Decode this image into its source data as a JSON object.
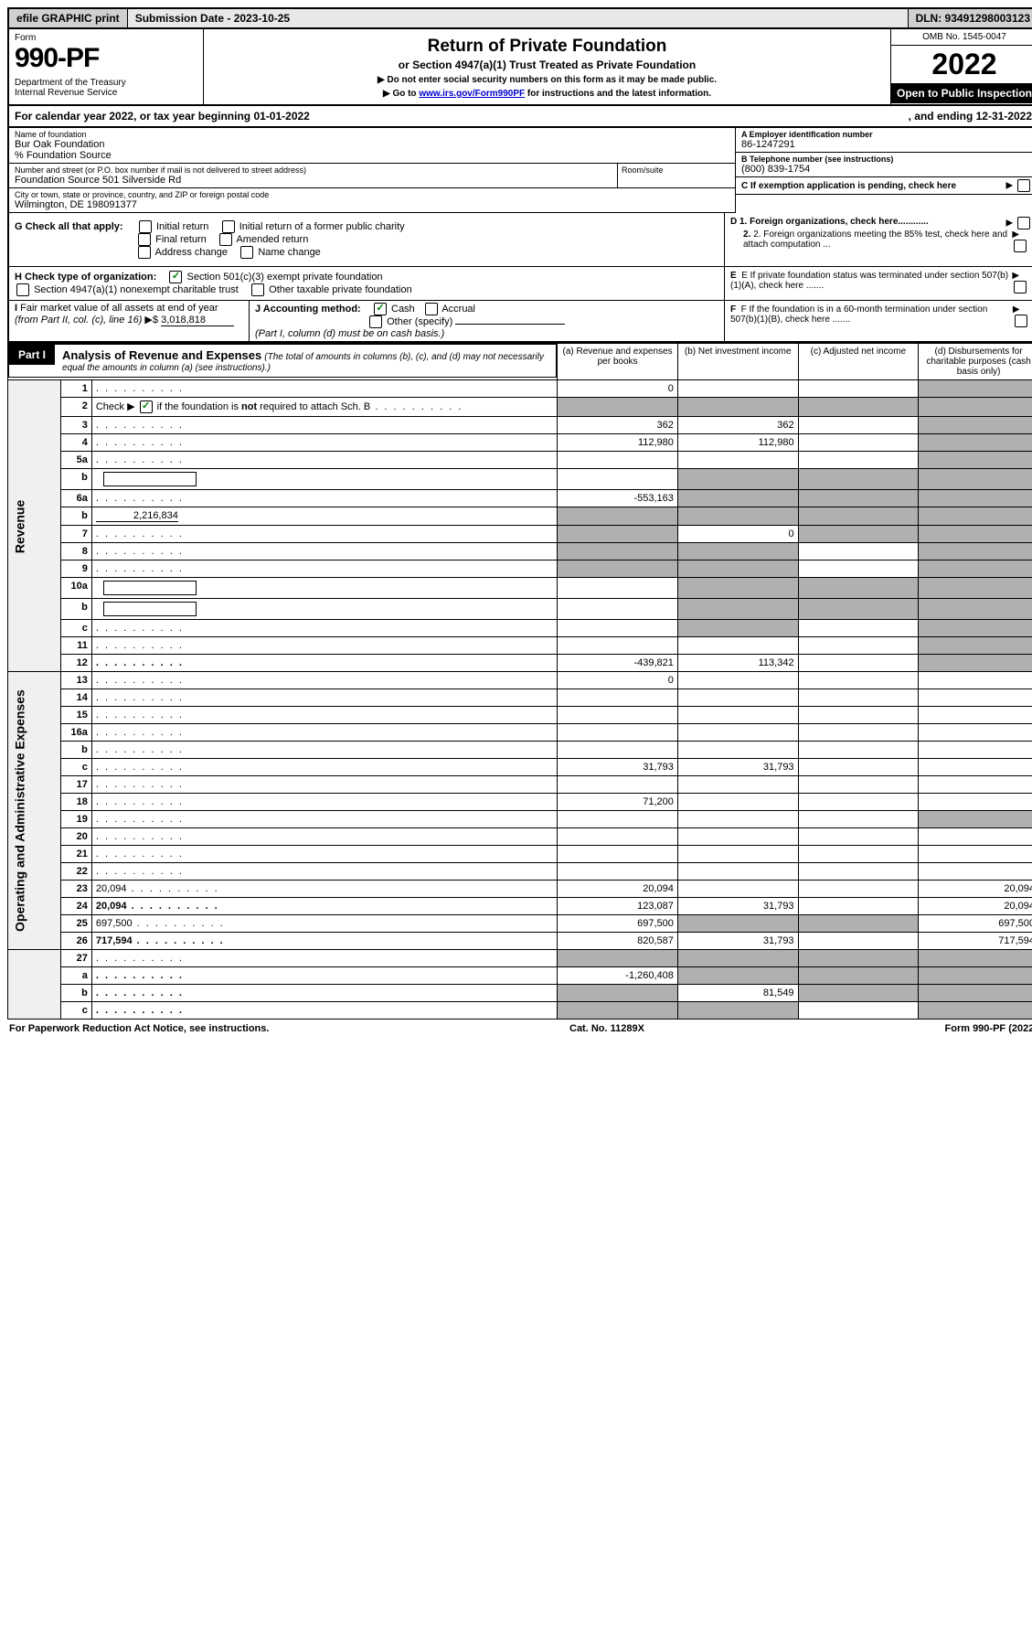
{
  "topbar": {
    "efile": "efile GRAPHIC print",
    "submission": "Submission Date - 2023-10-25",
    "dln": "DLN: 93491298003123"
  },
  "header": {
    "form_label": "Form",
    "form_number": "990-PF",
    "dept": "Department of the Treasury\nInternal Revenue Service",
    "title": "Return of Private Foundation",
    "subtitle": "or Section 4947(a)(1) Trust Treated as Private Foundation",
    "instr1": "▶ Do not enter social security numbers on this form as it may be made public.",
    "instr2_prefix": "▶ Go to ",
    "instr2_link": "www.irs.gov/Form990PF",
    "instr2_suffix": " for instructions and the latest information.",
    "omb": "OMB No. 1545-0047",
    "year": "2022",
    "open": "Open to Public Inspection"
  },
  "calyear": {
    "prefix": "For calendar year 2022, or tax year beginning ",
    "begin": "01-01-2022",
    "mid": ", and ending ",
    "end": "12-31-2022"
  },
  "block": {
    "name_label": "Name of foundation",
    "name": "Bur Oak Foundation",
    "care_of": "% Foundation Source",
    "addr_label": "Number and street (or P.O. box number if mail is not delivered to street address)",
    "addr": "Foundation Source 501 Silverside Rd",
    "room_label": "Room/suite",
    "city_label": "City or town, state or province, country, and ZIP or foreign postal code",
    "city": "Wilmington, DE  198091377",
    "ein_label": "A Employer identification number",
    "ein": "86-1247291",
    "phone_label": "B Telephone number (see instructions)",
    "phone": "(800) 839-1754",
    "c_label": "C If exemption application is pending, check here",
    "d1": "D 1. Foreign organizations, check here............",
    "d2": "2. Foreign organizations meeting the 85% test, check here and attach computation ...",
    "e_label": "E   If private foundation status was terminated under section 507(b)(1)(A), check here .......",
    "f_label": "F   If the foundation is in a 60-month termination under section 507(b)(1)(B), check here .......",
    "g_label": "G Check all that apply:",
    "g_opts": [
      "Initial return",
      "Initial return of a former public charity",
      "Final return",
      "Amended return",
      "Address change",
      "Name change"
    ],
    "h_label": "H Check type of organization:",
    "h1": "Section 501(c)(3) exempt private foundation",
    "h2": "Section 4947(a)(1) nonexempt charitable trust",
    "h3": "Other taxable private foundation",
    "i_label": "I Fair market value of all assets at end of year (from Part II, col. (c), line 16)",
    "i_value": "3,018,818",
    "j_label": "J Accounting method:",
    "j_cash": "Cash",
    "j_accrual": "Accrual",
    "j_other": "Other (specify)",
    "j_note": "(Part I, column (d) must be on cash basis.)"
  },
  "part1": {
    "label": "Part I",
    "title": "Analysis of Revenue and Expenses",
    "note": "(The total of amounts in columns (b), (c), and (d) may not necessarily equal the amounts in column (a) (see instructions).)",
    "col_a": "(a)   Revenue and expenses per books",
    "col_b": "(b)   Net investment income",
    "col_c": "(c)   Adjusted net income",
    "col_d": "(d)   Disbursements for charitable purposes (cash basis only)"
  },
  "sections": {
    "revenue": "Revenue",
    "expenses": "Operating and Administrative Expenses"
  },
  "rows": [
    {
      "n": "1",
      "d": "",
      "a": "0",
      "b": "",
      "c": "",
      "shade_c": false,
      "shade_d": true
    },
    {
      "n": "2",
      "d": "",
      "a": "",
      "b": "",
      "c": "",
      "shade_a": true,
      "shade_b": true,
      "shade_c": true,
      "shade_d": true,
      "is_check": true
    },
    {
      "n": "3",
      "d": "",
      "a": "362",
      "b": "362",
      "c": "",
      "shade_d": true
    },
    {
      "n": "4",
      "d": "",
      "a": "112,980",
      "b": "112,980",
      "c": "",
      "shade_d": true
    },
    {
      "n": "5a",
      "d": "",
      "a": "",
      "b": "",
      "c": "",
      "shade_d": true
    },
    {
      "n": "b",
      "d": "",
      "a": "",
      "b": "",
      "c": "",
      "shade_a": false,
      "shade_b": true,
      "shade_c": true,
      "shade_d": true,
      "inline_blank": true
    },
    {
      "n": "6a",
      "d": "",
      "a": "-553,163",
      "b": "",
      "c": "",
      "shade_b": true,
      "shade_c": true,
      "shade_d": true
    },
    {
      "n": "b",
      "d": "",
      "inline_val": "2,216,834",
      "a": "",
      "b": "",
      "c": "",
      "shade_a": true,
      "shade_b": true,
      "shade_c": true,
      "shade_d": true
    },
    {
      "n": "7",
      "d": "",
      "a": "",
      "b": "0",
      "c": "",
      "shade_a": true,
      "shade_c": true,
      "shade_d": true
    },
    {
      "n": "8",
      "d": "",
      "a": "",
      "b": "",
      "c": "",
      "shade_a": true,
      "shade_b": true,
      "shade_d": true
    },
    {
      "n": "9",
      "d": "",
      "a": "",
      "b": "",
      "c": "",
      "shade_a": true,
      "shade_b": true,
      "shade_d": true
    },
    {
      "n": "10a",
      "d": "",
      "a": "",
      "b": "",
      "c": "",
      "shade_a": false,
      "shade_b": true,
      "shade_c": true,
      "shade_d": true,
      "inline_blank": true
    },
    {
      "n": "b",
      "d": "",
      "a": "",
      "b": "",
      "c": "",
      "shade_a": false,
      "shade_b": true,
      "shade_c": true,
      "shade_d": true,
      "inline_blank": true
    },
    {
      "n": "c",
      "d": "",
      "a": "",
      "b": "",
      "c": "",
      "shade_b": true,
      "shade_d": true
    },
    {
      "n": "11",
      "d": "",
      "a": "",
      "b": "",
      "c": "",
      "shade_d": true
    },
    {
      "n": "12",
      "d": "",
      "a": "-439,821",
      "b": "113,342",
      "c": "",
      "shade_d": true,
      "bold": true
    }
  ],
  "exp_rows": [
    {
      "n": "13",
      "d": "",
      "a": "0",
      "b": "",
      "c": ""
    },
    {
      "n": "14",
      "d": "",
      "a": "",
      "b": "",
      "c": ""
    },
    {
      "n": "15",
      "d": "",
      "a": "",
      "b": "",
      "c": ""
    },
    {
      "n": "16a",
      "d": "",
      "a": "",
      "b": "",
      "c": ""
    },
    {
      "n": "b",
      "d": "",
      "a": "",
      "b": "",
      "c": ""
    },
    {
      "n": "c",
      "d": "",
      "a": "31,793",
      "b": "31,793",
      "c": ""
    },
    {
      "n": "17",
      "d": "",
      "a": "",
      "b": "",
      "c": ""
    },
    {
      "n": "18",
      "d": "",
      "a": "71,200",
      "b": "",
      "c": ""
    },
    {
      "n": "19",
      "d": "",
      "a": "",
      "b": "",
      "c": "",
      "shade_d": true
    },
    {
      "n": "20",
      "d": "",
      "a": "",
      "b": "",
      "c": ""
    },
    {
      "n": "21",
      "d": "",
      "a": "",
      "b": "",
      "c": ""
    },
    {
      "n": "22",
      "d": "",
      "a": "",
      "b": "",
      "c": ""
    },
    {
      "n": "23",
      "d": "20,094",
      "a": "20,094",
      "b": "",
      "c": ""
    },
    {
      "n": "24",
      "d": "20,094",
      "a": "123,087",
      "b": "31,793",
      "c": "",
      "bold": true
    },
    {
      "n": "25",
      "d": "697,500",
      "a": "697,500",
      "b": "",
      "c": "",
      "shade_b": true,
      "shade_c": true
    },
    {
      "n": "26",
      "d": "717,594",
      "a": "820,587",
      "b": "31,793",
      "c": "",
      "bold": true
    }
  ],
  "final_rows": [
    {
      "n": "27",
      "d": "",
      "a": "",
      "b": "",
      "c": "",
      "shade_a": true,
      "shade_b": true,
      "shade_c": true,
      "shade_d": true
    },
    {
      "n": "a",
      "d": "",
      "a": "-1,260,408",
      "b": "",
      "c": "",
      "shade_b": true,
      "shade_c": true,
      "shade_d": true,
      "bold": true
    },
    {
      "n": "b",
      "d": "",
      "a": "",
      "b": "81,549",
      "c": "",
      "shade_a": true,
      "shade_c": true,
      "shade_d": true,
      "bold": true
    },
    {
      "n": "c",
      "d": "",
      "a": "",
      "b": "",
      "c": "",
      "shade_a": true,
      "shade_b": true,
      "shade_d": true,
      "bold": true
    }
  ],
  "footer": {
    "left": "For Paperwork Reduction Act Notice, see instructions.",
    "mid": "Cat. No. 11289X",
    "right": "Form 990-PF (2022)"
  }
}
